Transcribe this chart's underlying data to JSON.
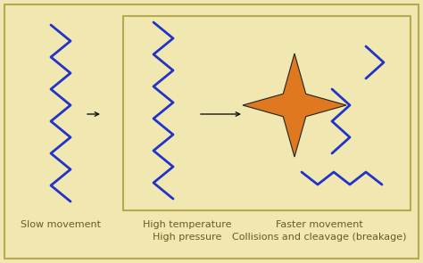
{
  "bg_color": "#f0e8b0",
  "border_color": "#b8a850",
  "zigzag_color": "#2233cc",
  "zigzag_lw": 2.0,
  "arrow_color": "#111111",
  "star_color": "#e07820",
  "star_edge_color": "#222222",
  "text_color": "#6a5a20",
  "label_slow": "Slow movement",
  "label_high_temp": "High temperature",
  "label_high_pres": "High pressure",
  "label_faster": "Faster movement",
  "label_collisions": "Collisions and cleavage (breakage)",
  "font_size": 8.0,
  "fig_w": 4.74,
  "fig_h": 2.95,
  "dpi": 100
}
